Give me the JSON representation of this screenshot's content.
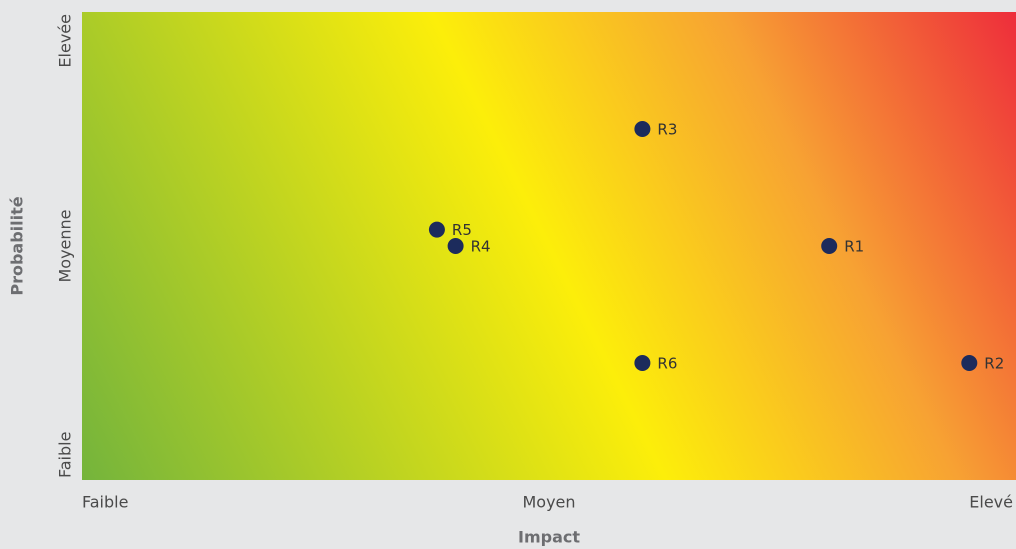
{
  "chart_data": {
    "type": "scatter",
    "xlabel": "Impact",
    "ylabel": "Probabilité",
    "xlim": [
      0,
      2
    ],
    "ylim": [
      0,
      2
    ],
    "xticks": [
      {
        "value": 0,
        "label": "Faible"
      },
      {
        "value": 1,
        "label": "Moyen"
      },
      {
        "value": 2,
        "label": "Elevé"
      }
    ],
    "yticks": [
      {
        "value": 0,
        "label": "Faible"
      },
      {
        "value": 1,
        "label": "Moyenne"
      },
      {
        "value": 2,
        "label": "Elevée"
      }
    ],
    "gradient_colors": [
      "#74b43c",
      "#fcee0a",
      "#f7a233",
      "#ee2d3b"
    ],
    "series": [
      {
        "color": "#1c2b5c",
        "x": [
          1.6,
          1.9,
          1.2,
          0.8,
          0.76,
          1.2
        ],
        "values": [
          1.0,
          0.5,
          1.5,
          1.0,
          1.07,
          0.5
        ],
        "point_labels": [
          "R1",
          "R2",
          "R3",
          "R4",
          "R5",
          "R6"
        ]
      }
    ]
  }
}
